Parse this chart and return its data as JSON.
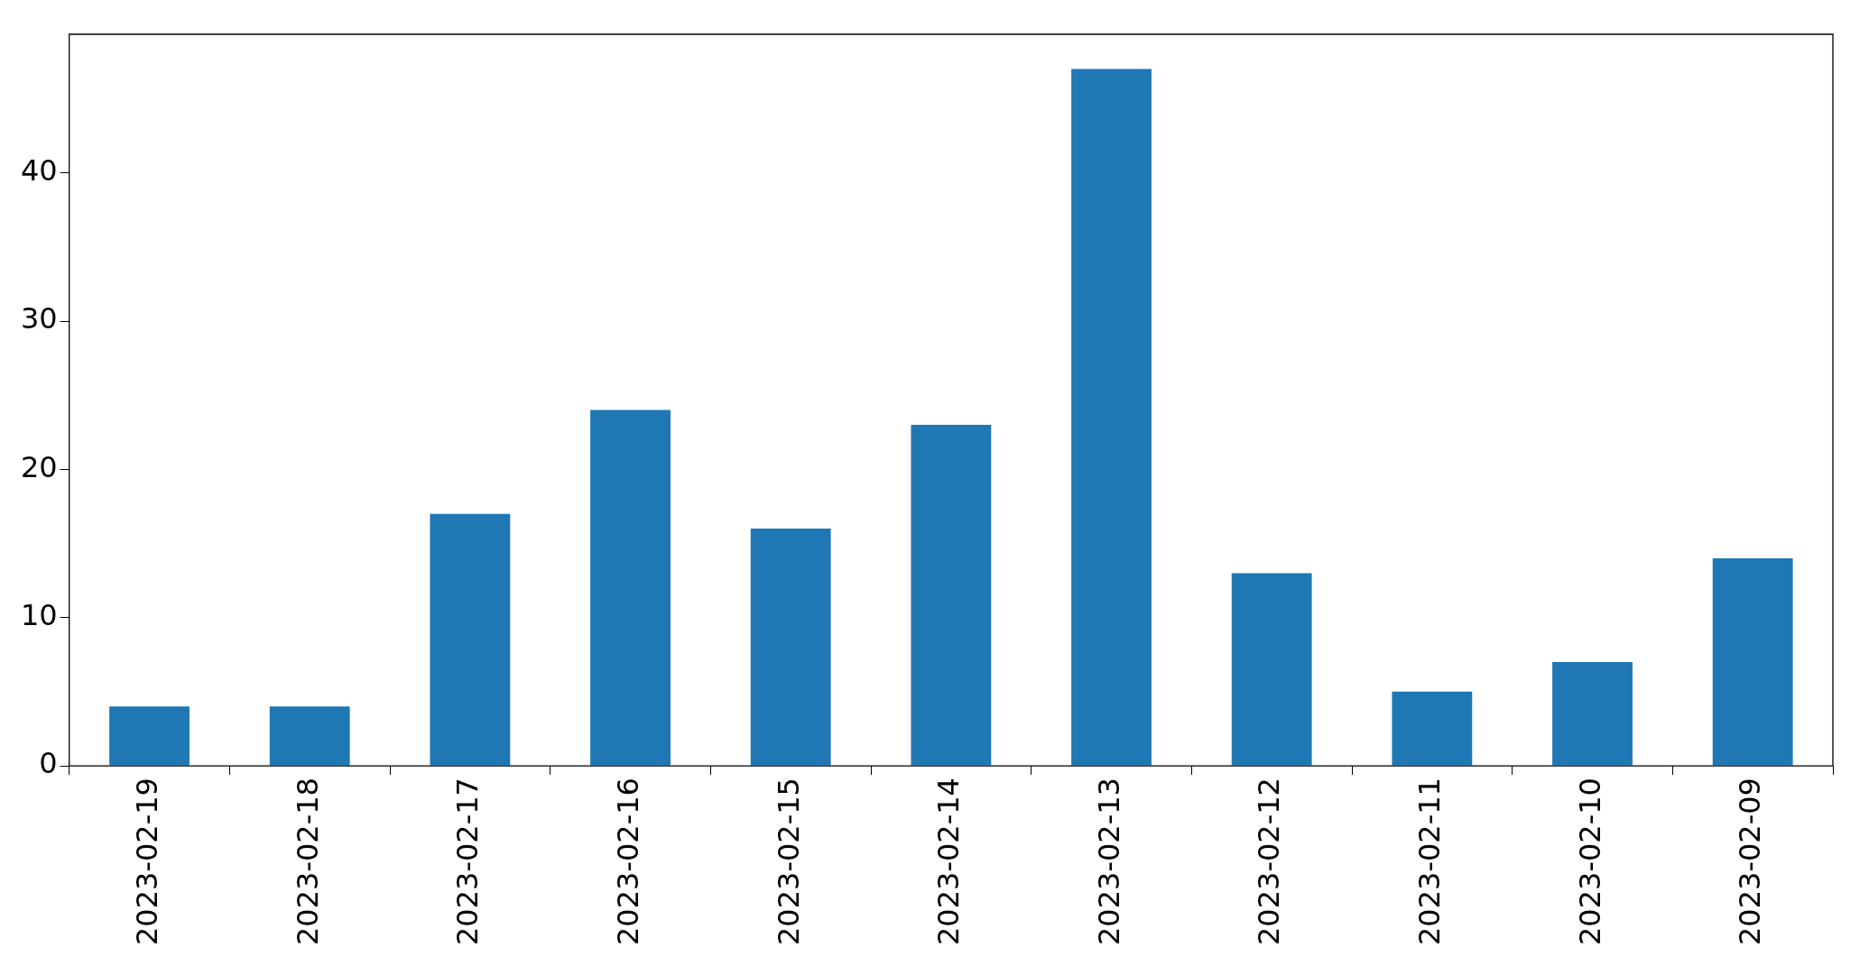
{
  "chart_data": {
    "type": "bar",
    "categories": [
      "2023-02-19",
      "2023-02-18",
      "2023-02-17",
      "2023-02-16",
      "2023-02-15",
      "2023-02-14",
      "2023-02-13",
      "2023-02-12",
      "2023-02-11",
      "2023-02-10",
      "2023-02-09"
    ],
    "values": [
      4,
      4,
      17,
      24,
      16,
      23,
      47,
      13,
      5,
      7,
      14
    ],
    "color": "#1f77b4",
    "ylim": [
      0,
      49.35
    ],
    "yticks": [
      0,
      10,
      20,
      30,
      40
    ],
    "grid": false,
    "legend": false
  }
}
